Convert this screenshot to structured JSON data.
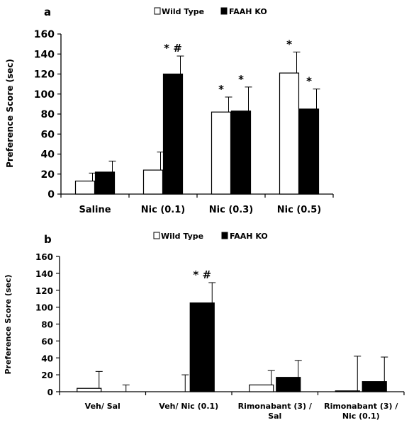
{
  "colors": {
    "wild_type": "#ffffff",
    "faah_ko": "#000000",
    "axis": "#000000"
  },
  "chart_data": [
    {
      "type": "bar",
      "panel": "a",
      "ylabel": "Preference Score (sec)",
      "ylim": [
        0,
        160
      ],
      "yticks": [
        0,
        20,
        40,
        60,
        80,
        100,
        120,
        140,
        160
      ],
      "categories": [
        "Saline",
        "Nic (0.1)",
        "Nic (0.3)",
        "Nic (0.5)"
      ],
      "series": [
        {
          "name": "Wild Type",
          "values": [
            13,
            24,
            82,
            121
          ],
          "errors": [
            8,
            18,
            15,
            21
          ]
        },
        {
          "name": "FAAH KO",
          "values": [
            22,
            120,
            83,
            85
          ],
          "errors": [
            11,
            18,
            24,
            20
          ]
        }
      ],
      "annotations": [
        {
          "category": 1,
          "series": 1,
          "text": "* #"
        },
        {
          "category": 2,
          "series": 0,
          "text": "*"
        },
        {
          "category": 2,
          "series": 1,
          "text": "*"
        },
        {
          "category": 3,
          "series": 0,
          "text": "*"
        },
        {
          "category": 3,
          "series": 1,
          "text": "*"
        }
      ],
      "legend_position": "top"
    },
    {
      "type": "bar",
      "panel": "b",
      "ylabel": "Preference Score (sec)",
      "ylim": [
        0,
        160
      ],
      "yticks": [
        0,
        20,
        40,
        60,
        80,
        100,
        120,
        140,
        160
      ],
      "categories": [
        "Veh/ Sal",
        "Veh/ Nic (0.1)",
        "Rimonabant (3) / Sal",
        "Rimonabant (3) / Nic (0.1)"
      ],
      "category_lines": [
        [
          "Veh/ Sal"
        ],
        [
          "Veh/ Nic (0.1)"
        ],
        [
          "Rimonabant (3) /",
          "Sal"
        ],
        [
          "Rimonabant (3) /",
          "Nic (0.1)"
        ]
      ],
      "series": [
        {
          "name": "Wild Type",
          "values": [
            4,
            0,
            8,
            1
          ],
          "errors": [
            20,
            20,
            17,
            41
          ]
        },
        {
          "name": "FAAH KO",
          "values": [
            0,
            105,
            17,
            12
          ],
          "errors": [
            8,
            24,
            20,
            29
          ]
        }
      ],
      "annotations": [
        {
          "category": 1,
          "series": 1,
          "text": "* #"
        }
      ],
      "legend_position": "top"
    }
  ]
}
